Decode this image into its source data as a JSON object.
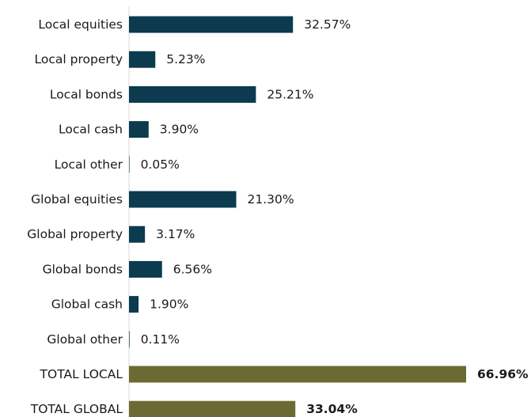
{
  "chart_data": {
    "type": "bar",
    "orientation": "horizontal",
    "categories": [
      "Local equities",
      "Local property",
      "Local bonds",
      "Local cash",
      "Local other",
      "Global equities",
      "Global property",
      "Global bonds",
      "Global cash",
      "Global other",
      "TOTAL LOCAL",
      "TOTAL GLOBAL"
    ],
    "values": [
      32.57,
      5.23,
      25.21,
      3.9,
      0.05,
      21.3,
      3.17,
      6.56,
      1.9,
      0.11,
      66.96,
      33.04
    ],
    "value_labels": [
      "32.57%",
      "5.23%",
      "25.21%",
      "3.90%",
      "0.05%",
      "21.30%",
      "3.17%",
      "6.56%",
      "1.90%",
      "0.11%",
      "66.96%",
      "33.04%"
    ],
    "bold_labels": [
      false,
      false,
      false,
      false,
      false,
      false,
      false,
      false,
      false,
      false,
      true,
      true
    ],
    "bar_colors": [
      "#0c3a4f",
      "#0c3a4f",
      "#0c3a4f",
      "#0c3a4f",
      "#0c3a4f",
      "#0c3a4f",
      "#0c3a4f",
      "#0c3a4f",
      "#0c3a4f",
      "#0c3a4f",
      "#6b6a32",
      "#6b6a32"
    ],
    "xlim": [
      0,
      66.96
    ],
    "grid": false,
    "title": "",
    "xlabel": "",
    "ylabel": ""
  }
}
